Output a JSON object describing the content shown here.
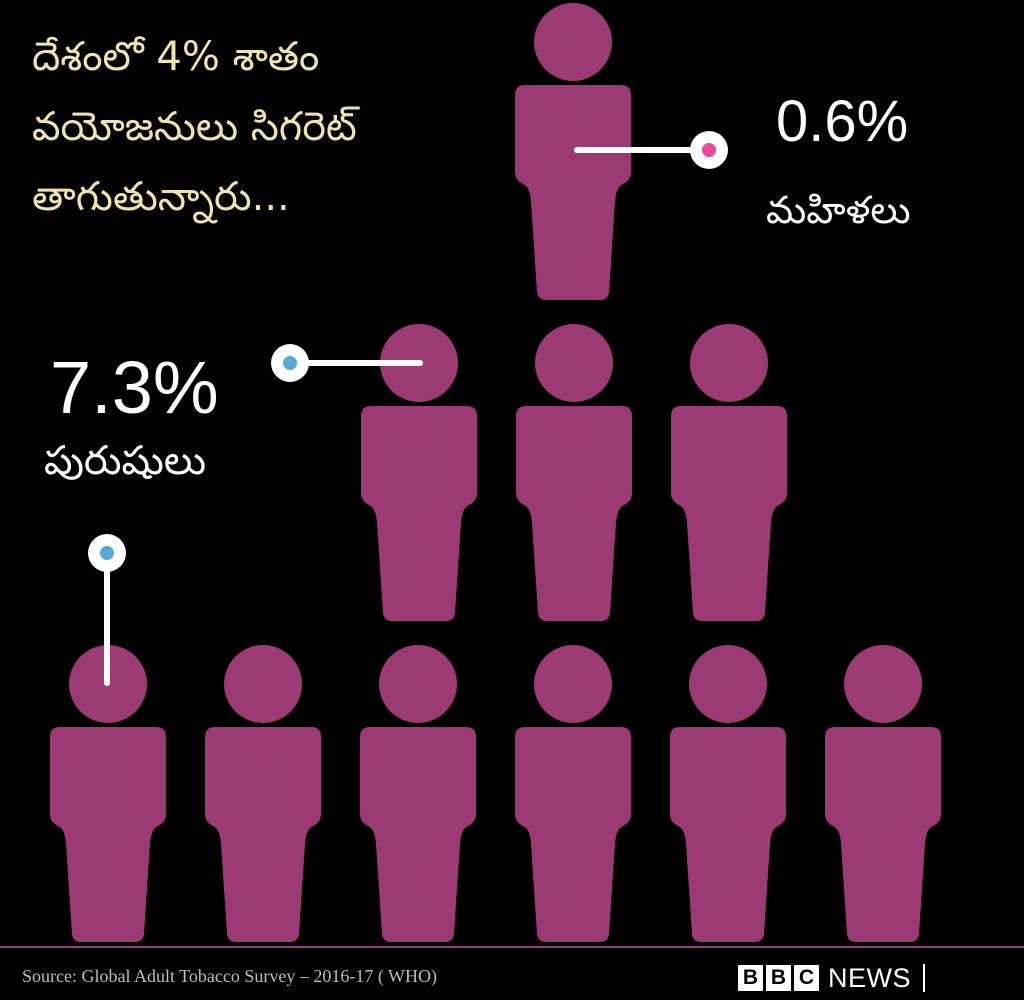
{
  "headline": {
    "line1": "దేశంలో 4% శాతం",
    "line2": "వయోజనులు సిగరెట్",
    "line3": "తాగుతున్నారు..."
  },
  "women": {
    "percent": "0.6%",
    "label": "మహిళలు",
    "marker_color": "#e84a9c"
  },
  "men": {
    "percent": "7.3%",
    "label": "పురుషులు",
    "marker_color": "#58a8d8"
  },
  "figure_color": "#9c3b73",
  "figure_icon": "person-icon",
  "source": "Source: Global Adult Tobacco Survey – 2016-17 ( WHO)",
  "logo": {
    "letters": [
      "B",
      "B",
      "C"
    ],
    "news": "NEWS"
  }
}
